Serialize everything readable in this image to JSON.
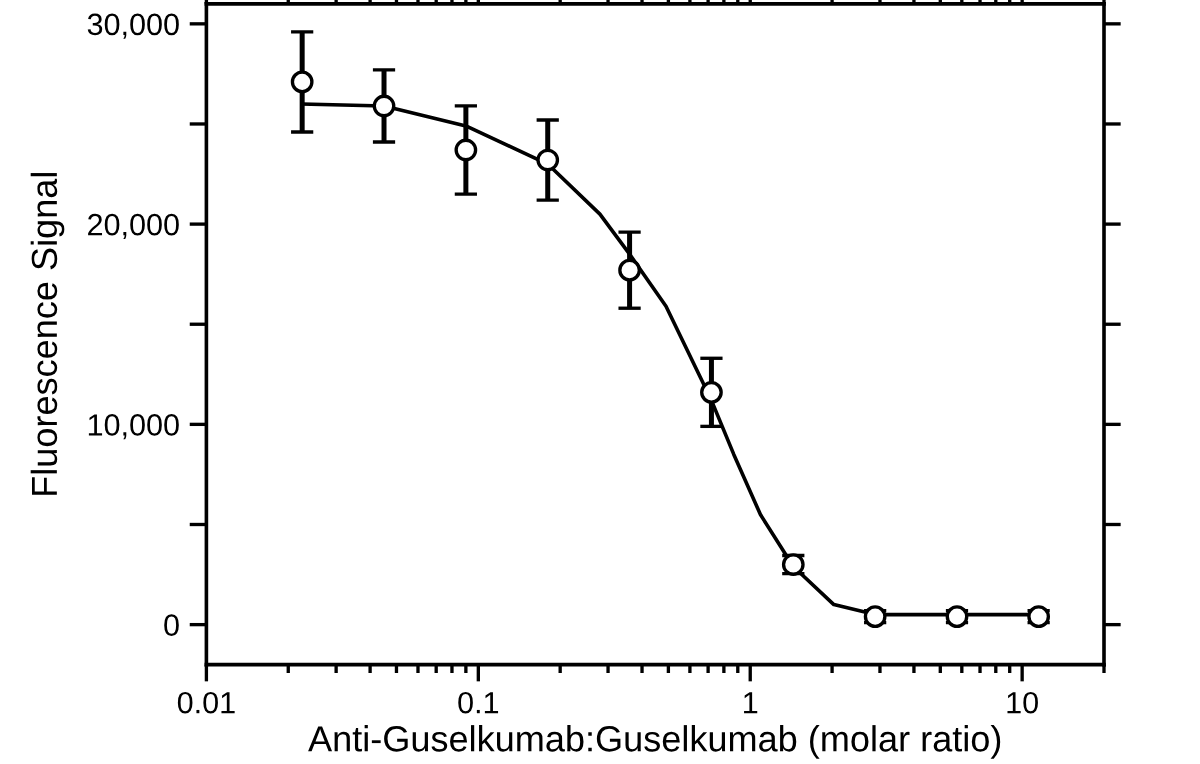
{
  "chart_data": {
    "type": "scatter",
    "xlabel": "Anti-Guselkumab:Guselkumab (molar ratio)",
    "ylabel": "Fluorescence Signal",
    "log": "x",
    "grid": false,
    "marker": "circle",
    "xlim": [
      0.01,
      20
    ],
    "xticks": [
      {
        "value": 0.01,
        "label": "0.01"
      },
      {
        "value": 0.1,
        "label": "0.1"
      },
      1,
      10
    ],
    "ylim": [
      -2000,
      31000
    ],
    "yticks": [
      {
        "value": 0,
        "label": "0"
      },
      {
        "value": 5000,
        "label": null
      },
      {
        "value": 10000,
        "label": "10,000"
      },
      {
        "value": 15000,
        "label": null
      },
      {
        "value": 20000,
        "label": "20,000"
      },
      {
        "value": 25000,
        "label": null
      },
      {
        "value": 30000,
        "label": "30,000"
      }
    ],
    "series": [
      {
        "color": "#000000",
        "x": [
          0.0225,
          0.045,
          0.09,
          0.18,
          0.36,
          0.72,
          1.44,
          2.88,
          5.76,
          11.5
        ],
        "values": [
          27100,
          25900,
          23700,
          23200,
          17700,
          11600,
          3000,
          400,
          400,
          400
        ],
        "errors": [
          2500,
          1800,
          2200,
          2000,
          1900,
          1700,
          450,
          300,
          300,
          300
        ]
      },
      {
        "type": "line",
        "color": "#000000",
        "marker": "none",
        "x": [
          0.0225,
          0.045,
          0.09,
          0.18,
          0.28,
          0.36,
          0.49,
          0.72,
          0.87,
          1.09,
          1.44,
          2.03,
          2.88,
          5.76,
          11.5
        ],
        "values": [
          26000,
          25900,
          24900,
          23000,
          20500,
          18500,
          15900,
          11200,
          8500,
          5500,
          2900,
          1000,
          500,
          500,
          500
        ]
      }
    ]
  }
}
